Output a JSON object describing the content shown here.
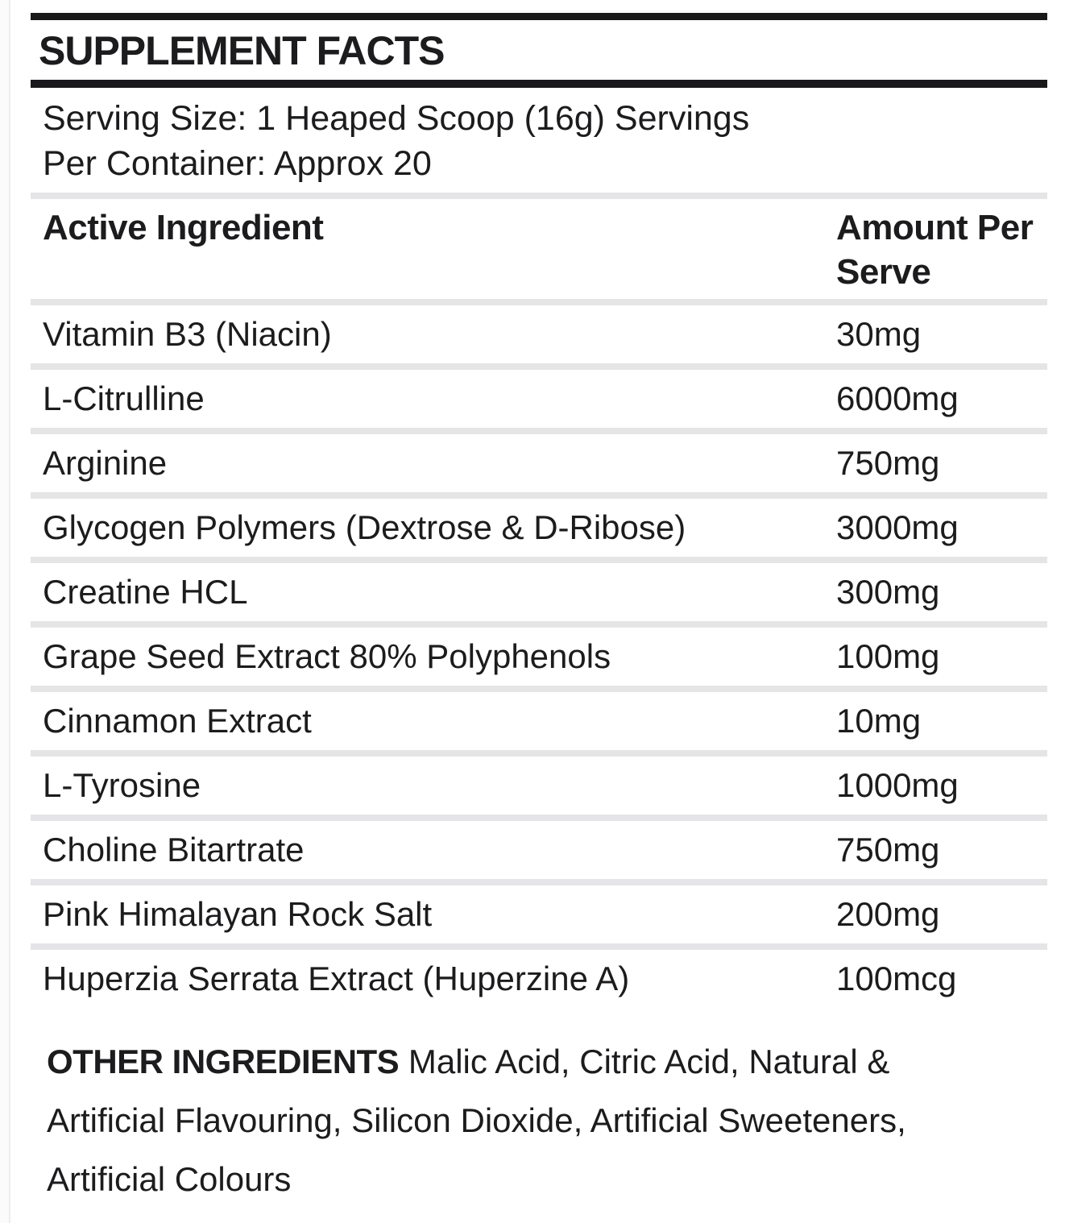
{
  "label": {
    "title": "SUPPLEMENT FACTS",
    "serving_lines": [
      "Serving Size: 1 Heaped Scoop (16g) Servings",
      "Per Container: Approx 20"
    ],
    "columns": {
      "ingredient": "Active Ingredient",
      "amount": "Amount Per Serve"
    },
    "rows": [
      {
        "name": "Vitamin B3 (Niacin)",
        "amount": "30mg"
      },
      {
        "name": "L-Citrulline",
        "amount": "6000mg"
      },
      {
        "name": "Arginine",
        "amount": "750mg"
      },
      {
        "name": "Glycogen Polymers (Dextrose & D-Ribose)",
        "amount": "3000mg"
      },
      {
        "name": "Creatine HCL",
        "amount": "300mg"
      },
      {
        "name": "Grape Seed Extract 80% Polyphenols",
        "amount": "100mg"
      },
      {
        "name": "Cinnamon Extract",
        "amount": "10mg"
      },
      {
        "name": "L-Tyrosine",
        "amount": "1000mg"
      },
      {
        "name": "Choline Bitartrate",
        "amount": "750mg"
      },
      {
        "name": "Pink Himalayan Rock Salt",
        "amount": "200mg"
      },
      {
        "name": "Huperzia Serrata Extract (Huperzine A)",
        "amount": "100mcg"
      }
    ],
    "other_ingredients": {
      "label": "OTHER INGREDIENTS",
      "lines": [
        "Malic Acid, Citric Acid, Natural &",
        "Artificial Flavouring, Silicon Dioxide, Artificial Sweeteners,",
        "Artificial Colours"
      ]
    },
    "colors": {
      "bar": "#19191b",
      "divider": "#e5e5e7",
      "text": "#1c1c1e"
    }
  }
}
